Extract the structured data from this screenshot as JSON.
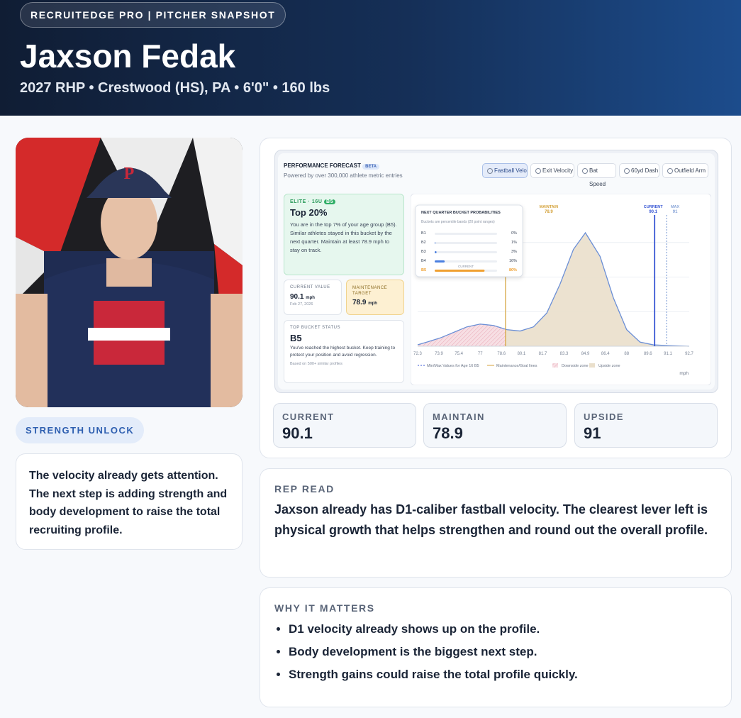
{
  "header": {
    "badge": "RECRUITEDGE PRO | PITCHER SNAPSHOT",
    "name": "Jaxson Fedak",
    "subtitle": "2027 RHP • Crestwood (HS), PA • 6'0\" • 160 lbs"
  },
  "sidebar": {
    "tag": "STRENGTH UNLOCK",
    "note": "The velocity already gets attention. The next step is adding strength and body development to raise the total recruiting profile."
  },
  "forecast": {
    "title": "PERFORMANCE FORECAST",
    "badge": "BETA",
    "subtitle": "Powered by over 300,000 athlete metric entries",
    "tabs": [
      "Fastball Velo",
      "Exit Velocity",
      "Bat Speed",
      "60yd Dash",
      "Outfield Arm"
    ],
    "elite": {
      "label": "ELITE · 16U",
      "badge": "B5",
      "headline": "Top 20%",
      "text": "You are in the top 7% of your age group (B5). Similar athletes stayed in this bucket by the next quarter. Maintain at least 78.9 mph to stay on track."
    },
    "current_card": {
      "label": "CURRENT VALUE",
      "value": "90.1",
      "unit": "mph",
      "date": "Feb 27, 2026"
    },
    "target_card": {
      "label": "MAINTENANCE TARGET",
      "value": "78.9",
      "unit": "mph"
    },
    "status_card": {
      "label": "TOP BUCKET STATUS",
      "bucket": "B5",
      "text": "You've reached the highest bucket. Keep training to protect your position and avoid regression.",
      "note": "Based on 500+ similar profiles"
    },
    "chart": {
      "type": "area",
      "x": [
        72.3,
        73,
        74,
        75,
        76,
        77,
        78,
        79,
        80,
        81,
        82,
        83,
        84,
        84.9,
        86,
        87,
        88,
        89,
        90,
        91,
        92.7
      ],
      "values": [
        1,
        3,
        6,
        10,
        14,
        16,
        15,
        12,
        11,
        14,
        24,
        45,
        70,
        82,
        65,
        35,
        12,
        3,
        1,
        0.5,
        0
      ],
      "xlim": [
        72.3,
        92.7
      ],
      "ylim": [
        0,
        100
      ],
      "xticks": [
        72.3,
        73.9,
        75.4,
        77,
        78.6,
        80.1,
        81.7,
        83.3,
        84.9,
        86.4,
        88,
        89.6,
        91.1,
        92.7
      ],
      "maintain": {
        "label": "MAINTAIN",
        "value": 78.9,
        "color": "#d4a23a"
      },
      "current": {
        "label": "CURRENT",
        "value": 90.1,
        "color": "#3756d4"
      },
      "max": {
        "label": "MAX",
        "value": 91,
        "color": "#8aa6d8"
      },
      "legend": [
        "Min/Max Values for Age 16 B5",
        "Maintenance/Goal lines",
        "Downside zone",
        "Upside zone"
      ],
      "unit": "mph",
      "buckets": {
        "title": "NEXT QUARTER BUCKET PROBABILITIES",
        "note": "Buckets are percentile bands (20 point ranges)",
        "categories": [
          "B1",
          "B2",
          "B3",
          "B4",
          "B5"
        ],
        "values": [
          0,
          1,
          3,
          16,
          80
        ],
        "value_labels": [
          "0%",
          "1%",
          "3%",
          "16%",
          "80%"
        ],
        "colors": [
          "#4a7fe0",
          "#4a7fe0",
          "#4a7fe0",
          "#4a7fe0",
          "#f0a030"
        ],
        "current_label": "CURRENT",
        "xlim": [
          0,
          100
        ]
      }
    }
  },
  "stats": [
    {
      "label": "CURRENT",
      "value": "90.1"
    },
    {
      "label": "MAINTAIN",
      "value": "78.9"
    },
    {
      "label": "UPSIDE",
      "value": "91"
    }
  ],
  "rep_read": {
    "heading": "REP READ",
    "text": "Jaxson already has D1-caliber fastball velocity. The clearest lever left is physical growth that helps strengthen and round out the overall profile."
  },
  "why": {
    "heading": "WHY IT MATTERS",
    "items": [
      "D1 velocity already shows up on the profile.",
      "Body development is the biggest next step.",
      "Strength gains could raise the total profile quickly."
    ]
  }
}
